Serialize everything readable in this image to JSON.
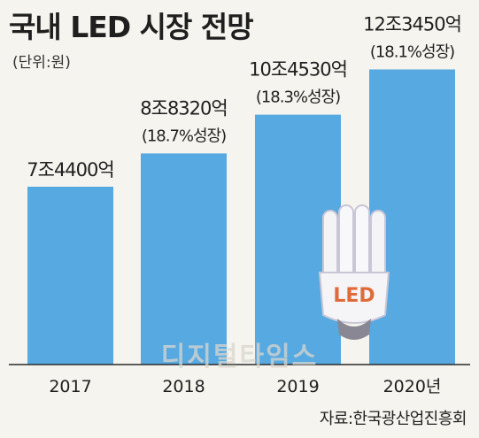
{
  "title": "국내 LED 시장 전망",
  "unit": "(단위:원)",
  "source": "자료:한국광산업진흥회",
  "watermark": "디지털타임스",
  "bulb_label": "LED",
  "colors": {
    "bar": "#56a9e1",
    "background": "#f6f4ee",
    "baseline": "#2b2b2b",
    "bulb_label": "#e06b3a"
  },
  "chart_data": {
    "type": "bar",
    "title": "국내 LED 시장 전망",
    "ylabel": "(단위:원)",
    "categories": [
      "2017",
      "2018",
      "2019",
      "2020년"
    ],
    "values": [
      7.44,
      8.832,
      10.453,
      12.345
    ],
    "value_labels": [
      "7조4400억",
      "8조8320억",
      "10조4530억",
      "12조3450억"
    ],
    "growth_labels": [
      "",
      "(18.7%성장)",
      "(18.3%성장)",
      "(18.1%성장)"
    ],
    "ylim": [
      0,
      15.25
    ],
    "grid": false,
    "legend": "none"
  }
}
